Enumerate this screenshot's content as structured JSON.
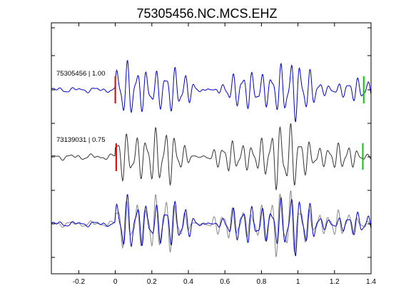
{
  "chart_data": {
    "type": "line",
    "title": "75305456.NC.MCS.EHZ",
    "xlabel": "",
    "ylabel": "",
    "xlim": [
      -0.35,
      1.4
    ],
    "xticks": [
      -0.2,
      0,
      0.2,
      0.4,
      0.6,
      0.8,
      1,
      1.2,
      1.4
    ],
    "xtick_labels": [
      "-0.2",
      "0",
      "0.2",
      "0.4",
      "0.6",
      "0.8",
      "1",
      "1.2",
      "1.4"
    ],
    "ytick_labels_shown": false,
    "grid": false,
    "legend": "none",
    "colors": {
      "reference": "#0000cc",
      "match": "#333333",
      "overlay_match": "#888888",
      "pick_start": "#dd0000",
      "pick_end": "#00cc00",
      "axes": "#000000"
    },
    "traces": [
      {
        "label": "75305456 | 1.00",
        "color": "#0000cc",
        "start_pick": 0,
        "end_pick": 1.36
      },
      {
        "label": "73139031 | 0.75",
        "color": "#333333",
        "start_pick": 0.005,
        "end_pick": 1.355
      },
      {
        "label": "",
        "overlay": true,
        "colors": [
          "#888888",
          "#0000cc"
        ]
      }
    ]
  }
}
